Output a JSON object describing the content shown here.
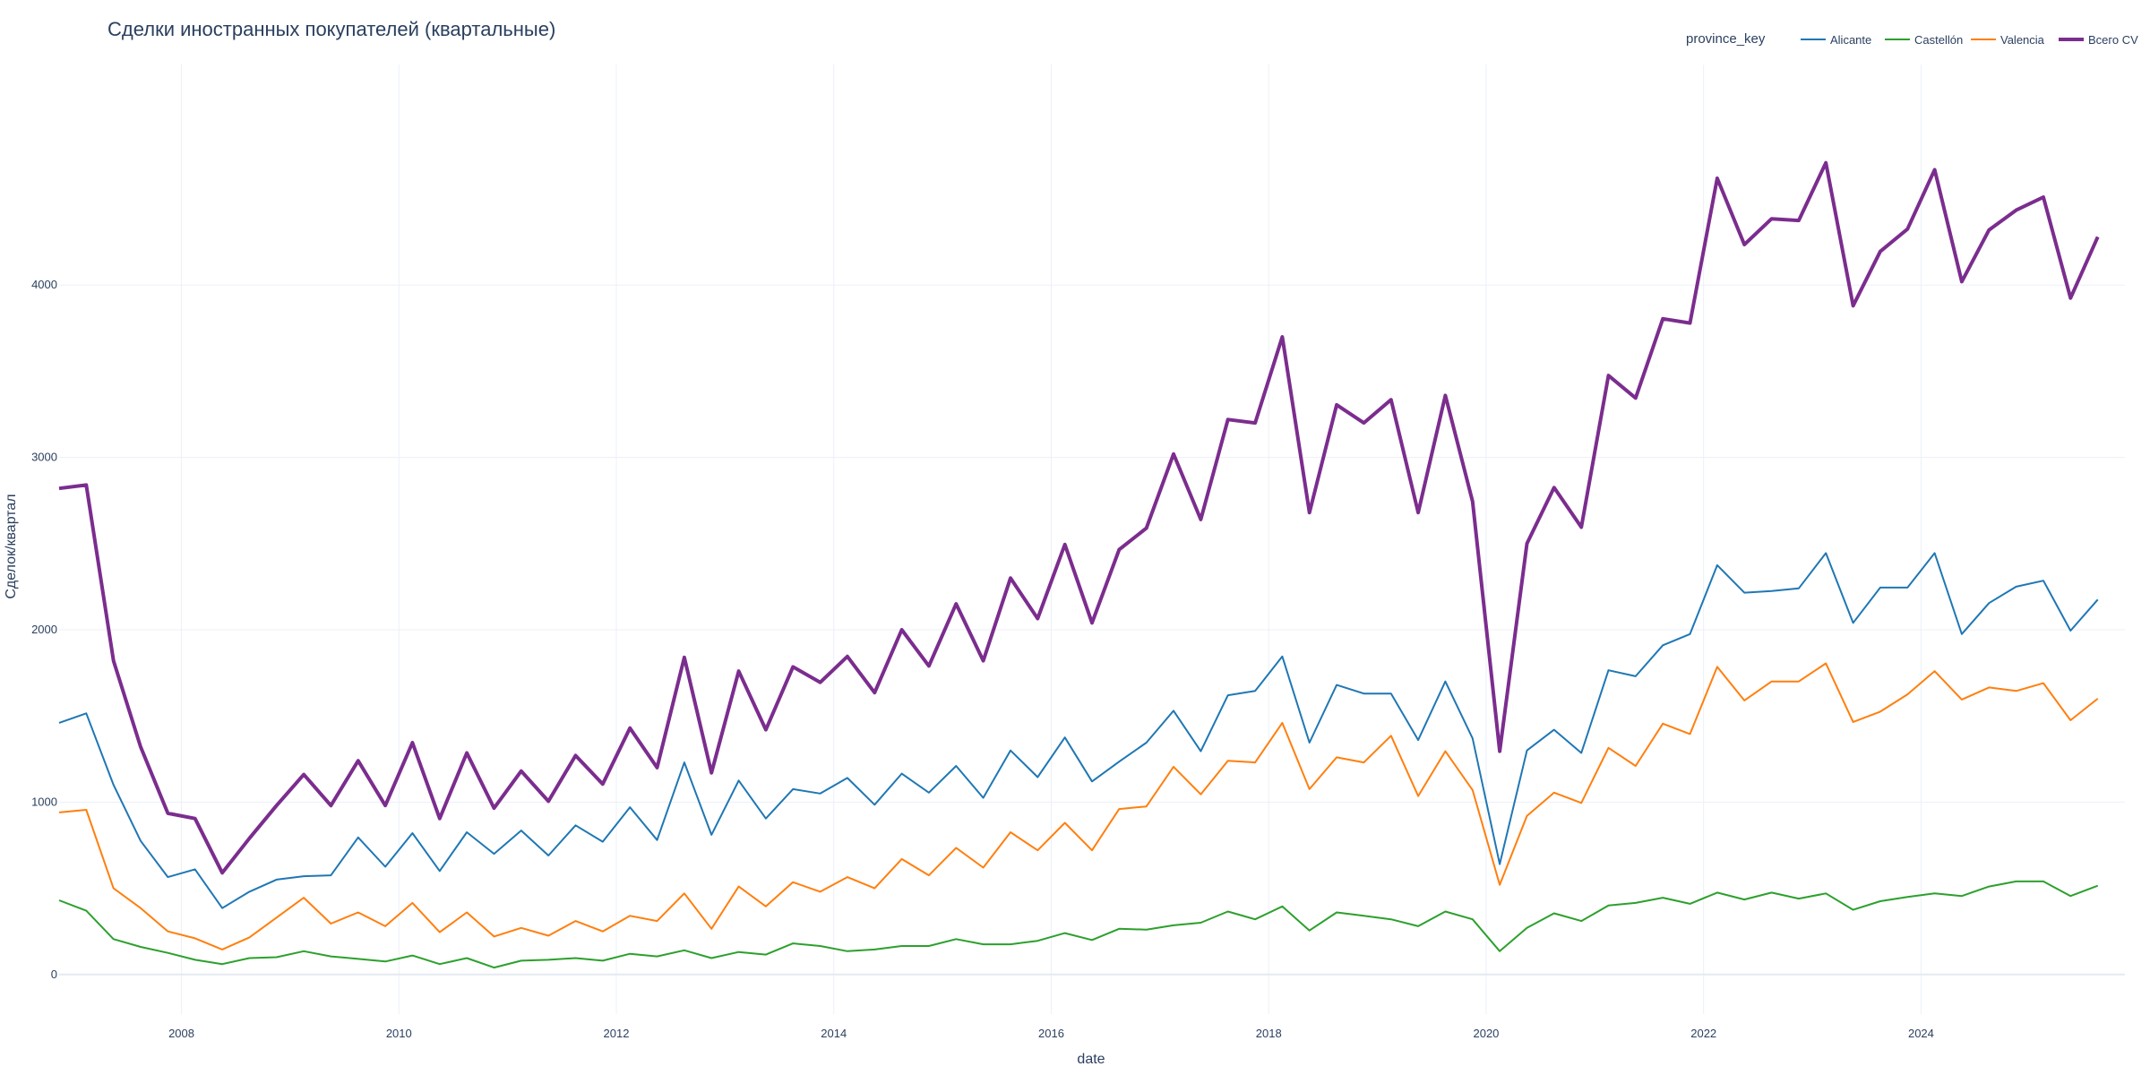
{
  "chart_data": {
    "type": "line",
    "title": "Сделки иностранных покупателей (квартальные)",
    "xlabel": "date",
    "ylabel": "Сделок/квартал",
    "legend_title": "province_key",
    "legend_position": "top-right",
    "grid": true,
    "xlim": [
      2006.875,
      2025.875
    ],
    "ylim": [
      -230,
      5280
    ],
    "x_ticks": [
      2008,
      2010,
      2012,
      2014,
      2016,
      2018,
      2020,
      2022,
      2024
    ],
    "y_ticks": [
      0,
      1000,
      2000,
      3000,
      4000
    ],
    "x_start": 2006.875,
    "x_step": 0.25,
    "series": [
      {
        "name": "Alicante",
        "color": "#1f77b4",
        "values": [
          1460,
          1515,
          1100,
          775,
          565,
          610,
          385,
          480,
          550,
          570,
          575,
          795,
          625,
          820,
          600,
          825,
          700,
          835,
          690,
          865,
          770,
          970,
          780,
          1230,
          810,
          1125,
          905,
          1075,
          1050,
          1140,
          985,
          1165,
          1055,
          1210,
          1025,
          1300,
          1145,
          1375,
          1120,
          1235,
          1345,
          1530,
          1295,
          1620,
          1645,
          1845,
          1345,
          1680,
          1630,
          1630,
          1360,
          1700,
          1370,
          640,
          1300,
          1420,
          1285,
          1765,
          1730,
          1910,
          1975,
          2375,
          2215,
          2225,
          2240,
          2445,
          2040,
          2245,
          2245,
          2445,
          1975,
          2155,
          2250,
          2285,
          1995,
          2175
        ]
      },
      {
        "name": "Castellón",
        "color": "#2ca02c",
        "values": [
          430,
          370,
          205,
          160,
          125,
          85,
          60,
          95,
          100,
          135,
          105,
          90,
          75,
          110,
          60,
          95,
          40,
          80,
          85,
          95,
          80,
          120,
          105,
          140,
          95,
          130,
          115,
          180,
          165,
          135,
          145,
          165,
          165,
          205,
          175,
          175,
          195,
          240,
          200,
          265,
          260,
          285,
          300,
          365,
          320,
          395,
          255,
          360,
          340,
          320,
          280,
          365,
          320,
          135,
          270,
          355,
          310,
          400,
          415,
          445,
          410,
          475,
          435,
          475,
          440,
          470,
          375,
          425,
          450,
          470,
          455,
          510,
          540,
          540,
          455,
          515
        ]
      },
      {
        "name": "Valencia",
        "color": "#ff7f0e",
        "values": [
          940,
          955,
          500,
          385,
          250,
          210,
          145,
          215,
          330,
          445,
          295,
          360,
          280,
          415,
          245,
          360,
          220,
          270,
          225,
          310,
          250,
          340,
          310,
          470,
          265,
          510,
          395,
          535,
          480,
          565,
          500,
          670,
          575,
          735,
          620,
          825,
          720,
          880,
          720,
          960,
          975,
          1205,
          1045,
          1240,
          1230,
          1460,
          1075,
          1260,
          1230,
          1385,
          1035,
          1295,
          1070,
          520,
          920,
          1055,
          995,
          1315,
          1210,
          1455,
          1395,
          1785,
          1590,
          1700,
          1700,
          1805,
          1465,
          1525,
          1625,
          1760,
          1595,
          1665,
          1645,
          1690,
          1475,
          1600
        ]
      },
      {
        "name": "Всего CV",
        "color": "#7b2d8e",
        "values": [
          2820,
          2840,
          1820,
          1320,
          935,
          905,
          590,
          790,
          980,
          1160,
          980,
          1240,
          980,
          1345,
          905,
          1285,
          965,
          1180,
          1005,
          1270,
          1105,
          1430,
          1200,
          1840,
          1170,
          1760,
          1420,
          1785,
          1695,
          1845,
          1635,
          2000,
          1790,
          2150,
          1820,
          2300,
          2065,
          2495,
          2040,
          2465,
          2590,
          3020,
          2640,
          3220,
          3200,
          3700,
          2680,
          3305,
          3200,
          3335,
          2680,
          3360,
          2745,
          1295,
          2500,
          2825,
          2595,
          3475,
          3345,
          3805,
          3780,
          4620,
          4235,
          4385,
          4375,
          4710,
          3880,
          4195,
          4325,
          4670,
          4020,
          4320,
          4435,
          4510,
          3925,
          4280
        ]
      }
    ]
  }
}
